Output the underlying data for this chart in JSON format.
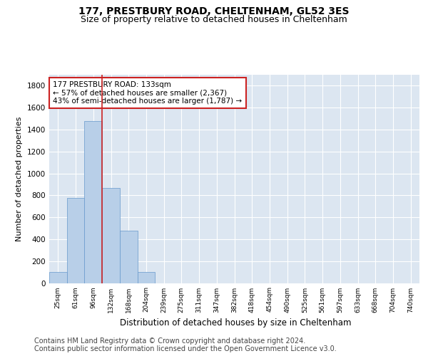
{
  "title1": "177, PRESTBURY ROAD, CHELTENHAM, GL52 3ES",
  "title2": "Size of property relative to detached houses in Cheltenham",
  "xlabel": "Distribution of detached houses by size in Cheltenham",
  "ylabel": "Number of detached properties",
  "categories": [
    "25sqm",
    "61sqm",
    "96sqm",
    "132sqm",
    "168sqm",
    "204sqm",
    "239sqm",
    "275sqm",
    "311sqm",
    "347sqm",
    "382sqm",
    "418sqm",
    "454sqm",
    "490sqm",
    "525sqm",
    "561sqm",
    "597sqm",
    "633sqm",
    "668sqm",
    "704sqm",
    "740sqm"
  ],
  "values": [
    100,
    775,
    1480,
    870,
    480,
    100,
    0,
    0,
    0,
    0,
    0,
    0,
    0,
    0,
    0,
    0,
    0,
    0,
    0,
    0,
    0
  ],
  "bar_color": "#b8cfe8",
  "bar_edge_color": "#6699cc",
  "vline_color": "#cc2222",
  "annotation_text": "177 PRESTBURY ROAD: 133sqm\n← 57% of detached houses are smaller (2,367)\n43% of semi-detached houses are larger (1,787) →",
  "annotation_box_color": "#ffffff",
  "annotation_box_edge": "#cc2222",
  "ylim": [
    0,
    1900
  ],
  "yticks": [
    0,
    200,
    400,
    600,
    800,
    1000,
    1200,
    1400,
    1600,
    1800
  ],
  "footer1": "Contains HM Land Registry data © Crown copyright and database right 2024.",
  "footer2": "Contains public sector information licensed under the Open Government Licence v3.0.",
  "plot_bg_color": "#dce6f1",
  "title1_fontsize": 10,
  "title2_fontsize": 9,
  "xlabel_fontsize": 8.5,
  "ylabel_fontsize": 8,
  "footer_fontsize": 7,
  "annot_fontsize": 7.5
}
